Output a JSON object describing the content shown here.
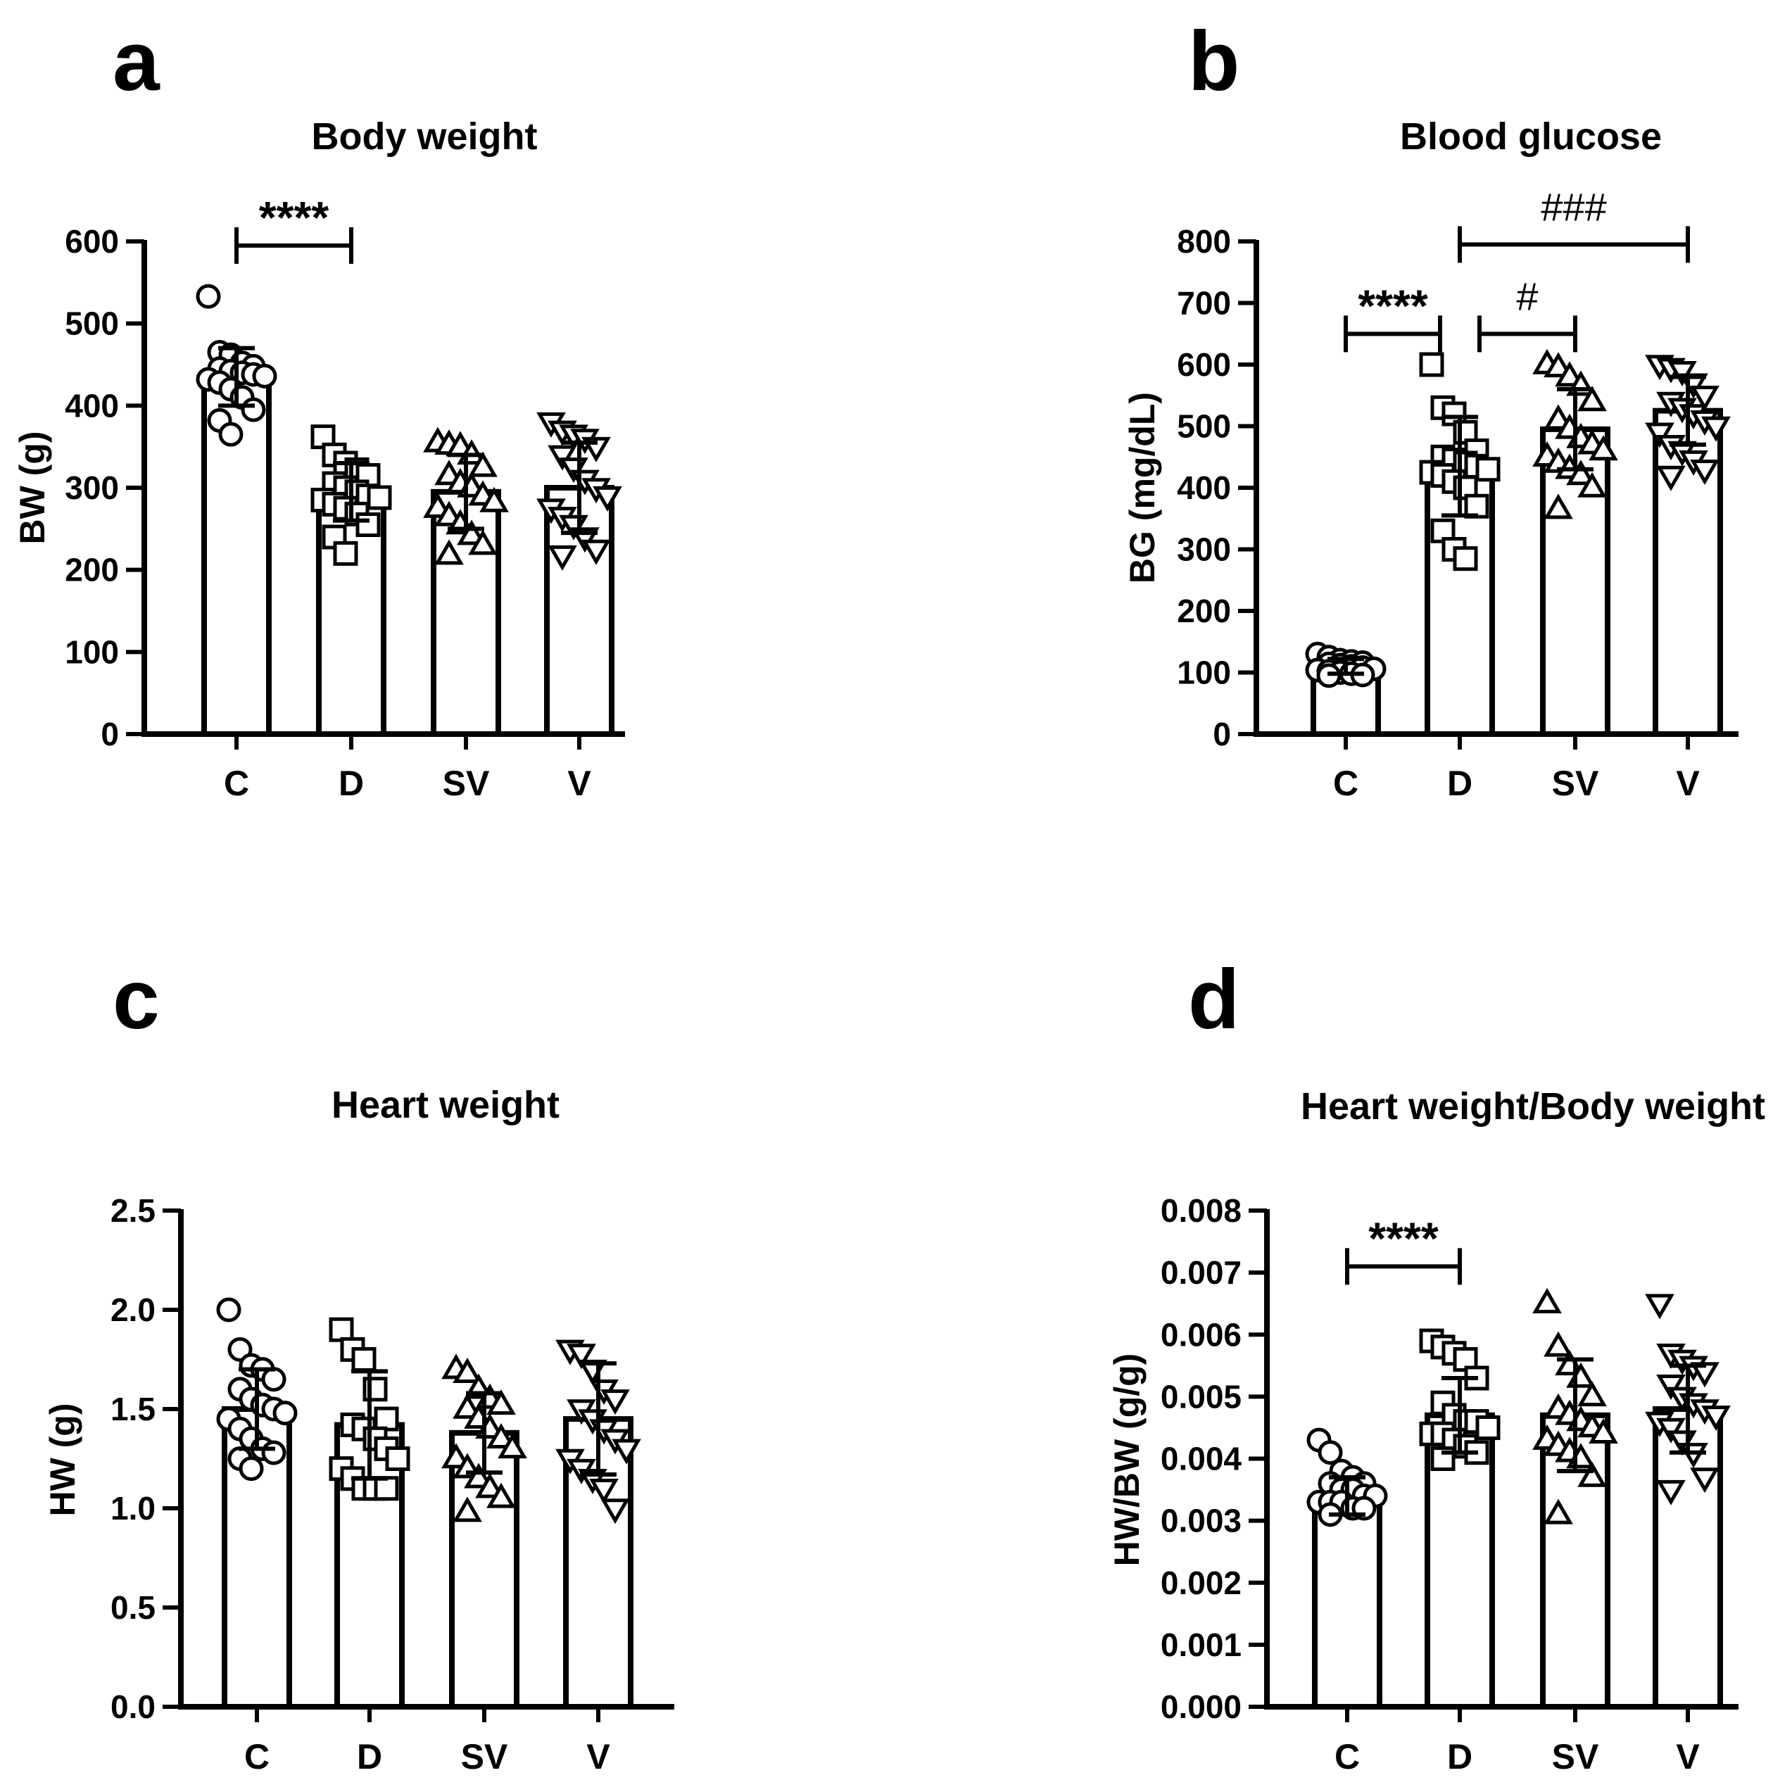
{
  "chart_data": [
    {
      "type": "bar",
      "panel": "a",
      "title": "Body weight",
      "ylabel": "BW (g)",
      "categories": [
        "C",
        "D",
        "SV",
        "V"
      ],
      "ylim": [
        0,
        600
      ],
      "yticks": [
        0,
        100,
        200,
        300,
        400,
        500,
        600
      ],
      "ytick_labels": [
        "0",
        "100",
        "200",
        "300",
        "400",
        "500",
        "600"
      ],
      "markers": [
        "circle",
        "square",
        "triangle-up",
        "triangle-down"
      ],
      "values": [
        435,
        295,
        295,
        300
      ],
      "sd": [
        35,
        35,
        45,
        55
      ],
      "points": [
        [
          533,
          465,
          462,
          452,
          448,
          445,
          442,
          440,
          438,
          436,
          432,
          428,
          420,
          410,
          395,
          382,
          365
        ],
        [
          362,
          340,
          330,
          322,
          315,
          305,
          300,
          295,
          290,
          288,
          285,
          280,
          275,
          268,
          255,
          240,
          220
        ],
        [
          355,
          352,
          350,
          340,
          325,
          315,
          305,
          300,
          290,
          282,
          275,
          265,
          255,
          242,
          230,
          218
        ],
        [
          380,
          370,
          365,
          360,
          350,
          340,
          325,
          310,
          300,
          290,
          275,
          265,
          255,
          240,
          225,
          218
        ]
      ],
      "significance": [
        {
          "from": "C",
          "to": "D",
          "label": "****",
          "y": 595
        }
      ]
    },
    {
      "type": "bar",
      "panel": "b",
      "title": "Blood glucose",
      "ylabel": "BG (mg/dL)",
      "categories": [
        "C",
        "D",
        "SV",
        "V"
      ],
      "ylim": [
        0,
        800
      ],
      "yticks": [
        0,
        100,
        200,
        300,
        400,
        500,
        600,
        700,
        800
      ],
      "ytick_labels": [
        "0",
        "100",
        "200",
        "300",
        "400",
        "500",
        "600",
        "700",
        "800"
      ],
      "markers": [
        "circle",
        "square",
        "triangle-up",
        "triangle-down"
      ],
      "values": [
        110,
        435,
        495,
        525
      ],
      "sd": [
        12,
        80,
        65,
        55
      ],
      "points": [
        [
          130,
          125,
          120,
          118,
          116,
          114,
          112,
          110,
          108,
          106,
          104,
          102,
          100,
          98,
          96,
          95
        ],
        [
          600,
          530,
          520,
          490,
          460,
          450,
          445,
          440,
          435,
          430,
          425,
          420,
          410,
          400,
          370,
          330,
          300,
          285
        ],
        [
          600,
          595,
          580,
          565,
          540,
          510,
          495,
          480,
          470,
          460,
          450,
          440,
          430,
          420,
          400,
          365
        ],
        [
          600,
          595,
          590,
          570,
          550,
          540,
          530,
          520,
          510,
          500,
          490,
          470,
          460,
          445,
          430,
          420
        ]
      ],
      "significance": [
        {
          "from": "C",
          "to": "D",
          "label": "****",
          "y": 675
        },
        {
          "from": "D",
          "to": "SV",
          "label": "#",
          "y": 675
        },
        {
          "from": "D",
          "to": "V",
          "label": "###",
          "y": 795
        }
      ]
    },
    {
      "type": "bar",
      "panel": "c",
      "title": "Heart weight",
      "ylabel": "HW (g)",
      "categories": [
        "C",
        "D",
        "SV",
        "V"
      ],
      "ylim": [
        0,
        2.5
      ],
      "yticks": [
        0,
        0.5,
        1.0,
        1.5,
        2.0,
        2.5
      ],
      "ytick_labels": [
        "0.0",
        "0.5",
        "1.0",
        "1.5",
        "2.0",
        "2.5"
      ],
      "markers": [
        "circle",
        "square",
        "triangle-up",
        "triangle-down"
      ],
      "values": [
        1.5,
        1.42,
        1.38,
        1.45
      ],
      "sd": [
        0.2,
        0.27,
        0.2,
        0.28
      ],
      "points": [
        [
          2.0,
          1.8,
          1.72,
          1.7,
          1.65,
          1.6,
          1.55,
          1.52,
          1.5,
          1.48,
          1.45,
          1.4,
          1.35,
          1.3,
          1.28,
          1.25,
          1.2
        ],
        [
          1.9,
          1.8,
          1.75,
          1.6,
          1.45,
          1.42,
          1.4,
          1.35,
          1.3,
          1.25,
          1.2,
          1.15,
          1.1,
          1.1,
          1.1
        ],
        [
          1.7,
          1.68,
          1.6,
          1.55,
          1.52,
          1.5,
          1.45,
          1.4,
          1.35,
          1.3,
          1.25,
          1.2,
          1.15,
          1.1,
          1.05,
          0.98
        ],
        [
          1.8,
          1.78,
          1.7,
          1.6,
          1.55,
          1.5,
          1.45,
          1.4,
          1.35,
          1.3,
          1.25,
          1.2,
          1.15,
          1.1,
          1.0
        ]
      ],
      "significance": []
    },
    {
      "type": "bar",
      "panel": "d",
      "title": "Heart weight/Body weight",
      "ylabel": "HW/BW (g/g)",
      "categories": [
        "C",
        "D",
        "SV",
        "V"
      ],
      "ylim": [
        0,
        0.008
      ],
      "yticks": [
        0,
        0.001,
        0.002,
        0.003,
        0.004,
        0.005,
        0.006,
        0.007,
        0.008
      ],
      "ytick_labels": [
        "0.000",
        "0.001",
        "0.002",
        "0.003",
        "0.004",
        "0.005",
        "0.006",
        "0.007",
        "0.008"
      ],
      "markers": [
        "circle",
        "square",
        "triangle-up",
        "triangle-down"
      ],
      "values": [
        0.0034,
        0.0047,
        0.0047,
        0.0048
      ],
      "sd": [
        0.0003,
        0.0006,
        0.0009,
        0.0007
      ],
      "points": [
        [
          0.0043,
          0.0041,
          0.0038,
          0.0037,
          0.0036,
          0.0036,
          0.0035,
          0.0035,
          0.0034,
          0.0034,
          0.0033,
          0.0033,
          0.0033,
          0.0032,
          0.0032,
          0.0031
        ],
        [
          0.0059,
          0.0058,
          0.0057,
          0.0056,
          0.0053,
          0.0049,
          0.0047,
          0.0046,
          0.0046,
          0.0045,
          0.0044,
          0.0044,
          0.0043,
          0.0042,
          0.0041,
          0.004
        ],
        [
          0.0065,
          0.0058,
          0.0055,
          0.0053,
          0.005,
          0.0048,
          0.0047,
          0.0046,
          0.0045,
          0.0044,
          0.0043,
          0.0042,
          0.0041,
          0.004,
          0.0037,
          0.0031
        ],
        [
          0.0065,
          0.0057,
          0.0056,
          0.0055,
          0.0054,
          0.0052,
          0.005,
          0.0049,
          0.0048,
          0.0047,
          0.0046,
          0.0045,
          0.0043,
          0.0041,
          0.0037,
          0.0035
        ]
      ],
      "significance": [
        {
          "from": "C",
          "to": "D",
          "label": "****",
          "y": 0.0071
        }
      ]
    }
  ]
}
